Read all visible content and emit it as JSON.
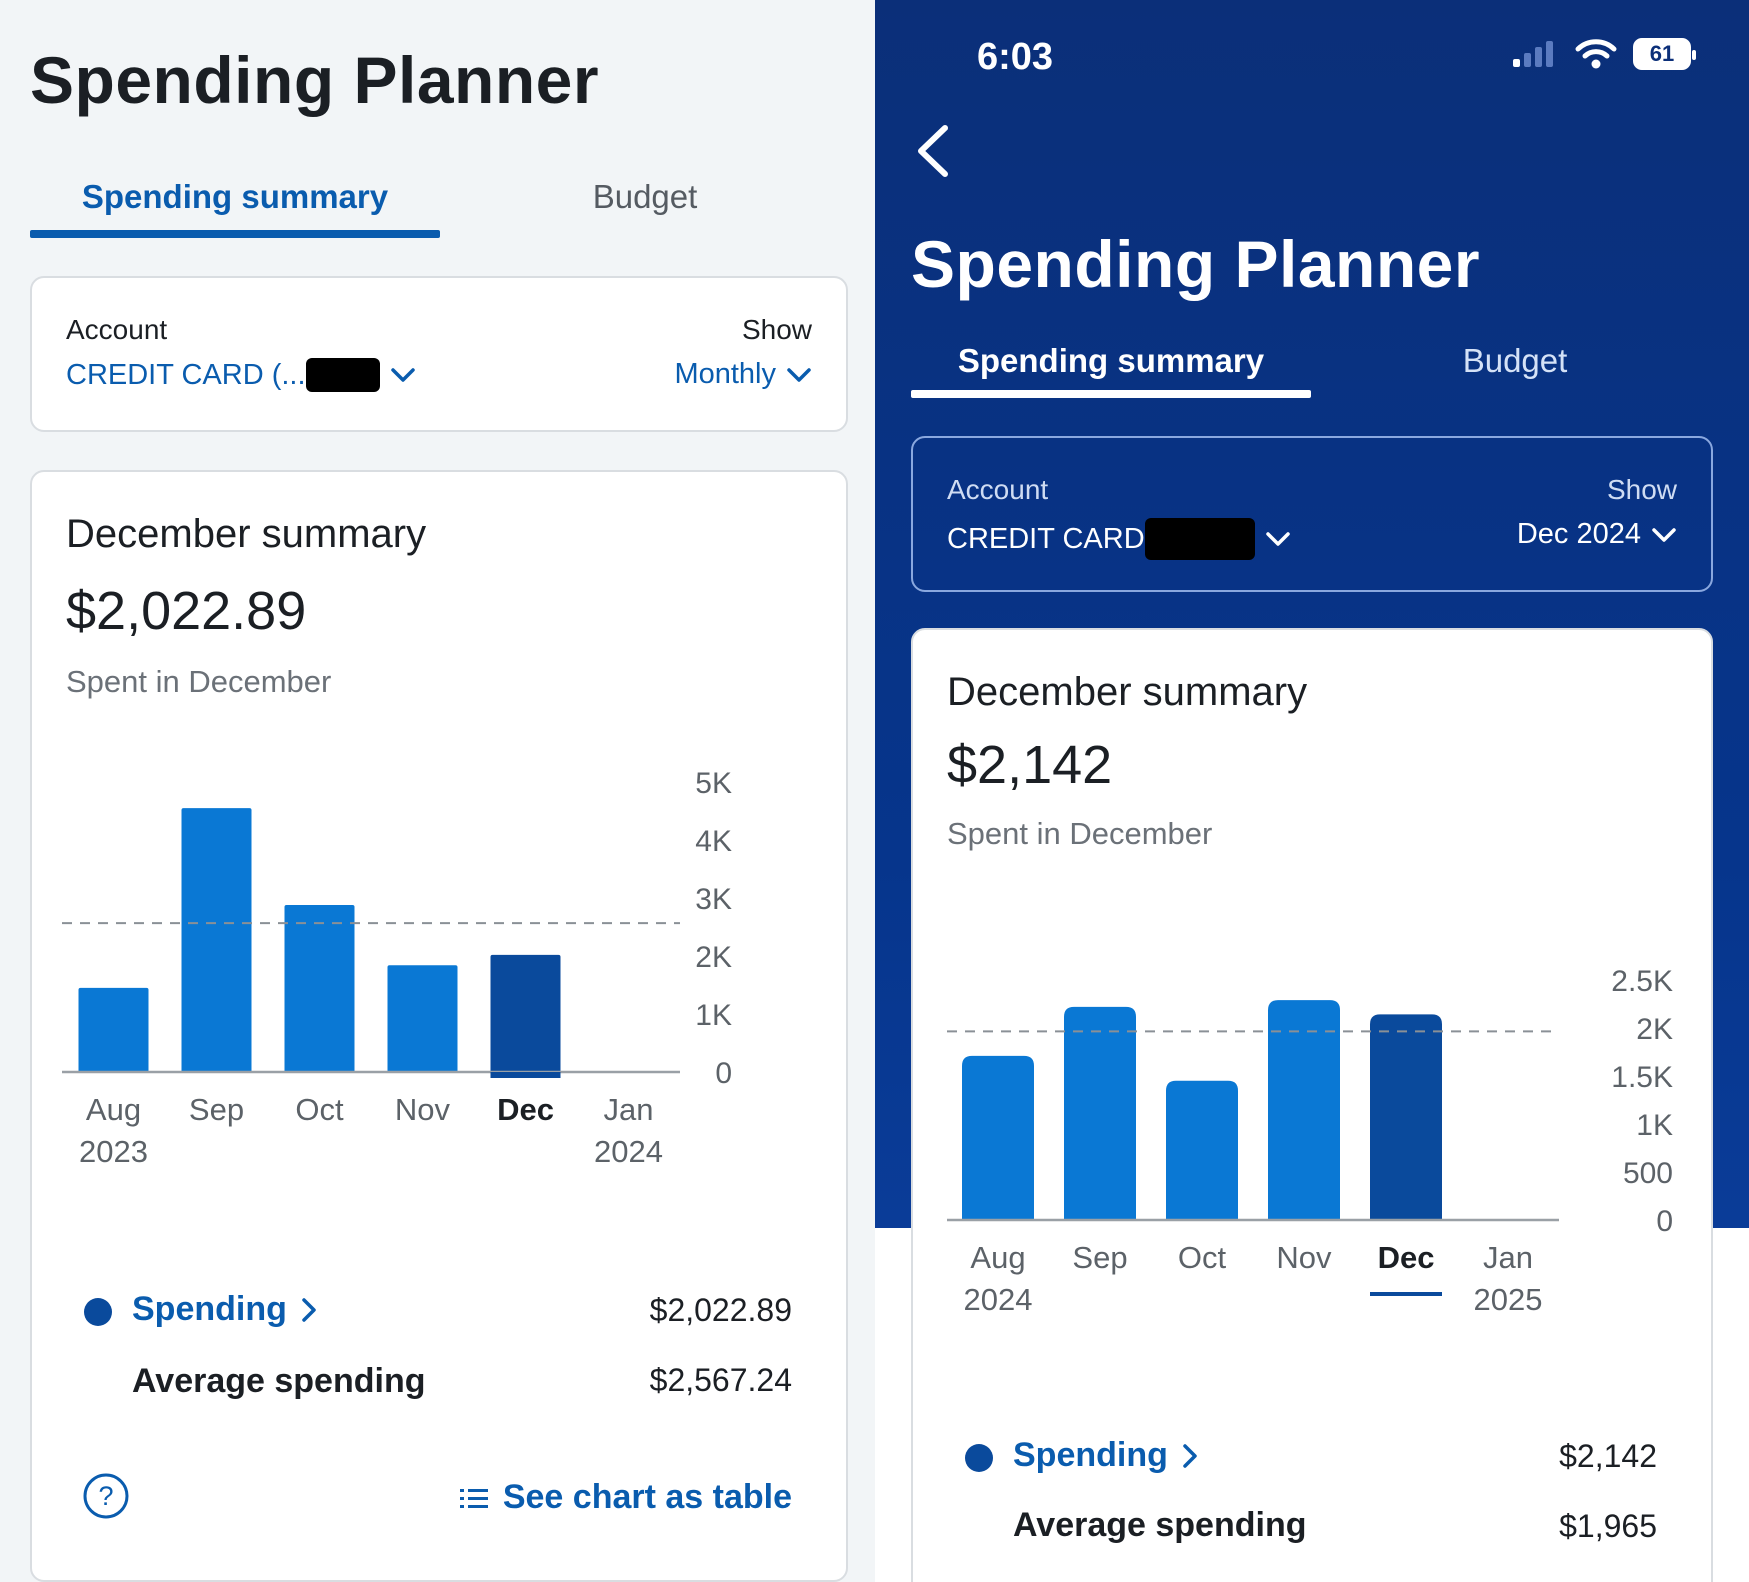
{
  "left": {
    "title": "Spending Planner",
    "tabs": {
      "summary": "Spending summary",
      "budget": "Budget"
    },
    "account": {
      "label": "Account",
      "value": "CREDIT CARD (...",
      "show_label": "Show",
      "show_value": "Monthly"
    },
    "summary": {
      "title": "December summary",
      "amount": "$2,022.89",
      "subtitle": "Spent in December"
    },
    "legend": {
      "spending_label": "Spending",
      "spending_value": "$2,022.89",
      "average_label": "Average spending",
      "average_value": "$2,567.24"
    },
    "footer": {
      "table_link": "See chart as table"
    }
  },
  "right": {
    "status": {
      "time": "6:03",
      "battery": "61"
    },
    "title": "Spending Planner",
    "tabs": {
      "summary": "Spending summary",
      "budget": "Budget"
    },
    "account": {
      "label": "Account",
      "value": "CREDIT CARD",
      "show_label": "Show",
      "show_value": "Dec 2024"
    },
    "summary": {
      "title": "December summary",
      "amount": "$2,142",
      "subtitle": "Spent in December"
    },
    "legend": {
      "spending_label": "Spending",
      "spending_value": "$2,142",
      "average_label": "Average spending",
      "average_value": "$1,965"
    }
  },
  "colors": {
    "brand_blue": "#0a5cae",
    "bar": "#0a78d4",
    "bar_selected": "#0a4a9c",
    "dark_bg": "#0b2f79",
    "legend_dot": "#0a4a9c"
  },
  "chart_data": [
    {
      "type": "bar",
      "categories": [
        "Aug 2023",
        "Sep",
        "Oct",
        "Nov",
        "Dec",
        "Jan 2024"
      ],
      "tick_lines": [
        [
          "Aug",
          "2023"
        ],
        [
          "Sep"
        ],
        [
          "Oct"
        ],
        [
          "Nov"
        ],
        [
          "Dec"
        ],
        [
          "Jan",
          "2024"
        ]
      ],
      "values": [
        1450,
        4550,
        2880,
        1840,
        2020,
        null
      ],
      "selected_index": 4,
      "average": 2567.24,
      "ylim": [
        0,
        5000
      ],
      "yticks": [
        0,
        1000,
        2000,
        3000,
        4000,
        5000
      ],
      "ytick_labels": [
        "0",
        "1K",
        "2K",
        "3K",
        "4K",
        "5K"
      ],
      "title": "",
      "xlabel": "",
      "ylabel": ""
    },
    {
      "type": "bar",
      "categories": [
        "Aug 2024",
        "Sep",
        "Oct",
        "Nov",
        "Dec",
        "Jan 2025"
      ],
      "tick_lines": [
        [
          "Aug",
          "2024"
        ],
        [
          "Sep"
        ],
        [
          "Oct"
        ],
        [
          "Nov"
        ],
        [
          "Dec"
        ],
        [
          "Jan",
          "2025"
        ]
      ],
      "values": [
        1710,
        2220,
        1450,
        2290,
        2142,
        null
      ],
      "selected_index": 4,
      "average": 1965,
      "ylim": [
        0,
        2500
      ],
      "yticks": [
        0,
        500,
        1000,
        1500,
        2000,
        2500
      ],
      "ytick_labels": [
        "0",
        "500",
        "1K",
        "1.5K",
        "2K",
        "2.5K"
      ],
      "title": "",
      "xlabel": "",
      "ylabel": ""
    }
  ]
}
